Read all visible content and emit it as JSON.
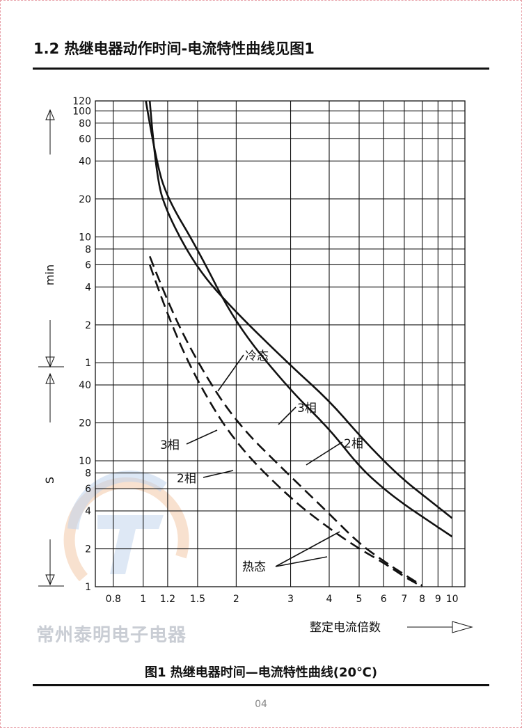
{
  "header": {
    "section_title": "1.2 热继电器动作时间-电流特性曲线见图1"
  },
  "figure": {
    "caption": "图1 热继电器时间—电流特性曲线(20℃)",
    "page_number": "04",
    "watermark": "常州泰明电子电器"
  },
  "chart_data": {
    "type": "line",
    "x_scale": "log",
    "y_scale": "log",
    "xlim": [
      0.7,
      11
    ],
    "x_ticks": [
      0.8,
      1,
      1.2,
      1.5,
      2,
      3,
      4,
      5,
      6,
      7,
      8,
      9,
      10
    ],
    "x_tick_labels": [
      "0.8",
      "1",
      "1.2",
      "1.5",
      "2",
      "3",
      "4",
      "5",
      "6",
      "7",
      "8",
      "9",
      "10"
    ],
    "xlabel": "整定电流倍数",
    "y_unit_minutes": "min",
    "y_unit_seconds": "S",
    "y_ticks_minutes": [
      120,
      100,
      80,
      60,
      40,
      20,
      10,
      8,
      6,
      4,
      2,
      1
    ],
    "y_ticks_seconds": [
      40,
      20,
      10,
      8,
      6,
      4,
      2,
      1
    ],
    "y_range_seconds": [
      1,
      7200
    ],
    "grid": true,
    "series": [
      {
        "name": "冷态 3相",
        "style": "solid",
        "points": [
          [
            1.05,
            7200
          ],
          [
            1.1,
            1800
          ],
          [
            1.2,
            900
          ],
          [
            1.5,
            330
          ],
          [
            2,
            150
          ],
          [
            3,
            57
          ],
          [
            4,
            30
          ],
          [
            5,
            16
          ],
          [
            6,
            10
          ],
          [
            7,
            7
          ],
          [
            8,
            5.4
          ],
          [
            10,
            3.5
          ]
        ]
      },
      {
        "name": "冷态 2相",
        "style": "solid",
        "points": [
          [
            1.02,
            7200
          ],
          [
            1.1,
            2400
          ],
          [
            1.2,
            1200
          ],
          [
            1.5,
            480
          ],
          [
            2,
            120
          ],
          [
            3,
            36
          ],
          [
            4,
            18
          ],
          [
            5,
            9
          ],
          [
            6,
            6
          ],
          [
            7,
            4.5
          ],
          [
            8,
            3.6
          ],
          [
            10,
            2.5
          ]
        ]
      },
      {
        "name": "热态 3相",
        "style": "dashed",
        "points": [
          [
            1.05,
            420
          ],
          [
            1.2,
            180
          ],
          [
            1.5,
            60
          ],
          [
            2,
            20
          ],
          [
            3,
            7.5
          ],
          [
            4,
            3.8
          ],
          [
            5,
            2.2
          ],
          [
            6,
            1.6
          ],
          [
            7,
            1.25
          ],
          [
            8,
            1.02
          ]
        ]
      },
      {
        "name": "热态 2相",
        "style": "dashed",
        "points": [
          [
            1.05,
            360
          ],
          [
            1.2,
            140
          ],
          [
            1.5,
            42
          ],
          [
            2,
            13.5
          ],
          [
            3,
            5
          ],
          [
            4,
            2.9
          ],
          [
            5,
            2
          ],
          [
            6,
            1.55
          ],
          [
            7,
            1.2
          ],
          [
            8,
            1.0
          ]
        ]
      }
    ],
    "annotations": [
      "冷态",
      "3相",
      "2相",
      "3相",
      "2相",
      "热态"
    ]
  }
}
